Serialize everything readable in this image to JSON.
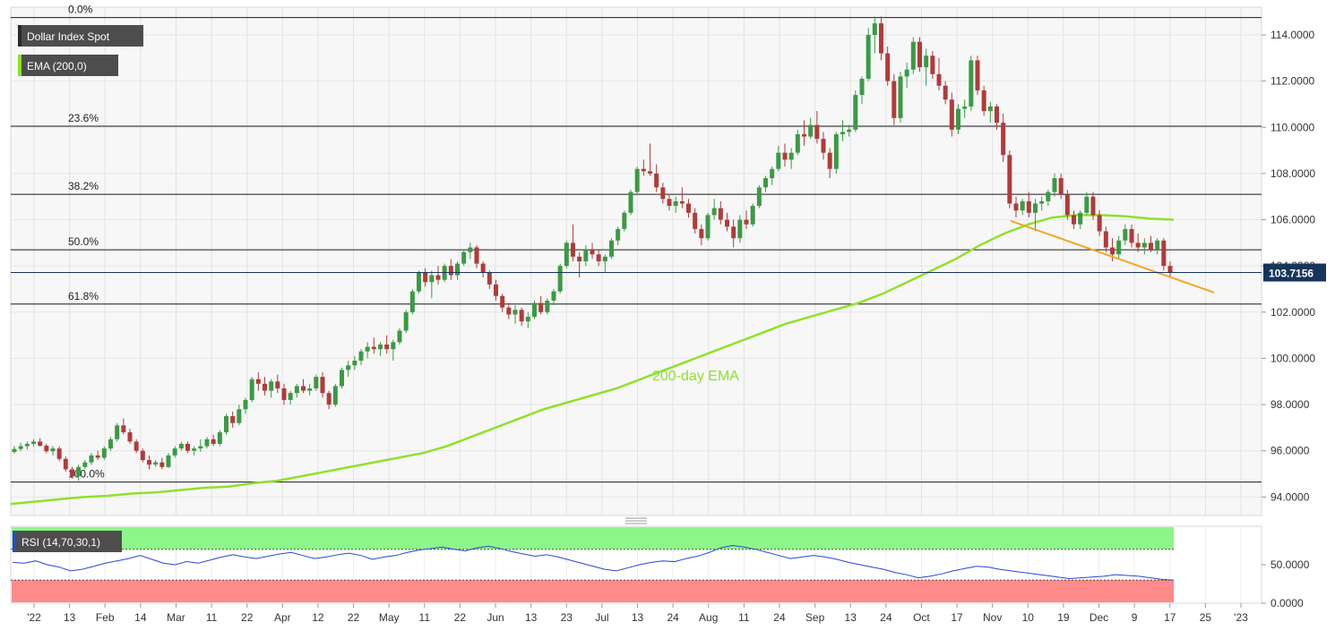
{
  "chart_data": {
    "type": "candlestick",
    "instrument": "Dollar Index Spot",
    "last_price": "103.7156",
    "price_axis": {
      "min": 93.2,
      "max": 115.2,
      "ticks": [
        94,
        96,
        98,
        100,
        102,
        104,
        106,
        108,
        110,
        112,
        114
      ],
      "tick_labels": [
        "94.0000",
        "96.0000",
        "98.0000",
        "100.0000",
        "102.0000",
        "104.0000",
        "106.0000",
        "108.0000",
        "110.0000",
        "112.0000",
        "114.0000"
      ]
    },
    "x_axis": {
      "labels": [
        "'22",
        "13",
        "Feb",
        "14",
        "Mar",
        "11",
        "22",
        "Apr",
        "12",
        "22",
        "May",
        "11",
        "22",
        "Jun",
        "13",
        "23",
        "Jul",
        "13",
        "24",
        "Aug",
        "11",
        "24",
        "Sep",
        "13",
        "24",
        "Oct",
        "17",
        "Nov",
        "10",
        "19",
        "Dec",
        "9",
        "17",
        "25",
        "'23"
      ]
    },
    "fibonacci": [
      {
        "label": "0.0%",
        "value": 114.75
      },
      {
        "label": "23.6%",
        "value": 110.05
      },
      {
        "label": "38.2%",
        "value": 107.1
      },
      {
        "label": "50.0%",
        "value": 104.7
      },
      {
        "label": "61.8%",
        "value": 102.35
      },
      {
        "label": "100.0%",
        "value": 94.65
      }
    ],
    "candles": [
      [
        95.95,
        96.2,
        95.88,
        96.08
      ],
      [
        96.08,
        96.35,
        95.98,
        96.2
      ],
      [
        96.2,
        96.4,
        96.05,
        96.3
      ],
      [
        96.3,
        96.5,
        96.2,
        96.4
      ],
      [
        96.4,
        96.55,
        96.18,
        96.22
      ],
      [
        96.22,
        96.3,
        95.9,
        95.98
      ],
      [
        95.98,
        96.2,
        95.8,
        96.1
      ],
      [
        96.1,
        96.2,
        95.55,
        95.65
      ],
      [
        95.65,
        95.75,
        95.1,
        95.2
      ],
      [
        95.2,
        95.3,
        94.8,
        94.9
      ],
      [
        94.9,
        95.4,
        94.7,
        95.3
      ],
      [
        95.3,
        95.6,
        95.2,
        95.5
      ],
      [
        95.5,
        95.9,
        95.4,
        95.8
      ],
      [
        95.8,
        96.0,
        95.6,
        95.7
      ],
      [
        95.7,
        96.2,
        95.6,
        96.1
      ],
      [
        96.1,
        96.6,
        96.0,
        96.5
      ],
      [
        96.5,
        97.2,
        96.4,
        97.1
      ],
      [
        97.1,
        97.4,
        96.7,
        96.8
      ],
      [
        96.8,
        96.95,
        96.3,
        96.4
      ],
      [
        96.4,
        96.5,
        95.9,
        96.0
      ],
      [
        96.0,
        96.1,
        95.5,
        95.6
      ],
      [
        95.6,
        95.8,
        95.2,
        95.4
      ],
      [
        95.4,
        95.6,
        95.3,
        95.5
      ],
      [
        95.5,
        95.7,
        95.2,
        95.3
      ],
      [
        95.3,
        95.9,
        95.25,
        95.8
      ],
      [
        95.8,
        96.2,
        95.7,
        96.1
      ],
      [
        96.1,
        96.4,
        96.0,
        96.3
      ],
      [
        96.3,
        96.4,
        95.9,
        96.0
      ],
      [
        96.0,
        96.2,
        95.8,
        96.1
      ],
      [
        96.1,
        96.5,
        95.95,
        96.2
      ],
      [
        96.2,
        96.6,
        96.1,
        96.5
      ],
      [
        96.5,
        96.7,
        96.2,
        96.3
      ],
      [
        96.3,
        96.9,
        96.2,
        96.8
      ],
      [
        96.8,
        97.6,
        96.7,
        97.5
      ],
      [
        97.5,
        97.7,
        97.0,
        97.2
      ],
      [
        97.2,
        98.0,
        97.1,
        97.8
      ],
      [
        97.8,
        98.3,
        97.6,
        98.2
      ],
      [
        98.2,
        99.2,
        98.1,
        99.1
      ],
      [
        99.1,
        99.4,
        98.6,
        98.9
      ],
      [
        98.9,
        99.2,
        98.4,
        98.6
      ],
      [
        98.6,
        99.1,
        98.3,
        99.0
      ],
      [
        99.0,
        99.3,
        98.5,
        98.7
      ],
      [
        98.7,
        98.9,
        98.0,
        98.2
      ],
      [
        98.2,
        98.6,
        98.0,
        98.5
      ],
      [
        98.5,
        98.9,
        98.3,
        98.8
      ],
      [
        98.8,
        99.1,
        98.5,
        98.6
      ],
      [
        98.6,
        98.9,
        98.4,
        98.7
      ],
      [
        98.7,
        99.3,
        98.6,
        99.2
      ],
      [
        99.2,
        99.4,
        98.3,
        98.5
      ],
      [
        98.5,
        98.6,
        97.8,
        98.0
      ],
      [
        98.0,
        98.9,
        97.9,
        98.8
      ],
      [
        98.8,
        99.6,
        98.7,
        99.5
      ],
      [
        99.5,
        99.9,
        99.2,
        99.7
      ],
      [
        99.7,
        100.1,
        99.5,
        99.9
      ],
      [
        99.9,
        100.4,
        99.7,
        100.3
      ],
      [
        100.3,
        100.7,
        100.0,
        100.5
      ],
      [
        100.5,
        100.9,
        100.2,
        100.4
      ],
      [
        100.4,
        100.7,
        100.1,
        100.6
      ],
      [
        100.6,
        101.0,
        100.2,
        100.4
      ],
      [
        100.4,
        100.8,
        99.9,
        100.7
      ],
      [
        100.7,
        101.3,
        100.6,
        101.2
      ],
      [
        101.2,
        102.1,
        101.1,
        102.0
      ],
      [
        102.0,
        103.0,
        101.9,
        102.9
      ],
      [
        102.9,
        103.8,
        102.8,
        103.7
      ],
      [
        103.7,
        103.9,
        103.1,
        103.3
      ],
      [
        103.3,
        103.8,
        102.6,
        103.6
      ],
      [
        103.6,
        104.0,
        103.2,
        103.4
      ],
      [
        103.4,
        104.1,
        103.3,
        104.0
      ],
      [
        104.0,
        104.3,
        103.4,
        103.6
      ],
      [
        103.6,
        104.2,
        103.4,
        104.1
      ],
      [
        104.1,
        104.7,
        104.0,
        104.6
      ],
      [
        104.6,
        105.0,
        104.3,
        104.8
      ],
      [
        104.8,
        104.9,
        103.9,
        104.1
      ],
      [
        104.1,
        104.2,
        103.5,
        103.7
      ],
      [
        103.7,
        103.8,
        103.0,
        103.2
      ],
      [
        103.2,
        103.4,
        102.5,
        102.7
      ],
      [
        102.7,
        102.8,
        102.0,
        102.2
      ],
      [
        102.2,
        102.4,
        101.7,
        101.9
      ],
      [
        101.9,
        102.3,
        101.5,
        102.1
      ],
      [
        102.1,
        102.2,
        101.4,
        101.6
      ],
      [
        101.6,
        102.0,
        101.3,
        101.8
      ],
      [
        101.8,
        102.5,
        101.7,
        102.4
      ],
      [
        102.4,
        102.7,
        101.9,
        102.0
      ],
      [
        102.0,
        102.6,
        101.9,
        102.5
      ],
      [
        102.5,
        103.0,
        102.3,
        102.9
      ],
      [
        102.9,
        104.1,
        102.8,
        104.0
      ],
      [
        104.0,
        105.1,
        103.9,
        105.0
      ],
      [
        105.0,
        105.8,
        104.2,
        104.4
      ],
      [
        104.4,
        104.6,
        103.5,
        104.2
      ],
      [
        104.2,
        104.9,
        104.0,
        104.7
      ],
      [
        104.7,
        105.0,
        104.3,
        104.5
      ],
      [
        104.5,
        104.7,
        104.0,
        104.2
      ],
      [
        104.2,
        104.5,
        103.7,
        104.4
      ],
      [
        104.4,
        105.2,
        104.3,
        105.1
      ],
      [
        105.1,
        105.7,
        104.9,
        105.6
      ],
      [
        105.6,
        106.4,
        105.5,
        106.3
      ],
      [
        106.3,
        107.3,
        106.2,
        107.2
      ],
      [
        107.2,
        108.3,
        107.1,
        108.2
      ],
      [
        108.2,
        108.6,
        107.9,
        108.1
      ],
      [
        108.1,
        109.3,
        107.9,
        108.0
      ],
      [
        108.0,
        108.4,
        107.2,
        107.4
      ],
      [
        107.4,
        107.6,
        106.7,
        106.9
      ],
      [
        106.9,
        107.1,
        106.4,
        106.6
      ],
      [
        106.6,
        107.0,
        106.3,
        106.8
      ],
      [
        106.8,
        107.4,
        106.5,
        106.7
      ],
      [
        106.7,
        106.9,
        106.1,
        106.3
      ],
      [
        106.3,
        106.5,
        105.4,
        105.6
      ],
      [
        105.6,
        105.8,
        104.9,
        105.2
      ],
      [
        105.2,
        106.3,
        105.1,
        106.2
      ],
      [
        106.2,
        106.9,
        106.0,
        106.5
      ],
      [
        106.5,
        106.8,
        105.8,
        106.0
      ],
      [
        106.0,
        106.3,
        105.5,
        105.7
      ],
      [
        105.7,
        106.0,
        104.8,
        105.2
      ],
      [
        105.2,
        106.2,
        105.0,
        106.0
      ],
      [
        106.0,
        106.4,
        105.6,
        105.8
      ],
      [
        105.8,
        106.7,
        105.7,
        106.6
      ],
      [
        106.6,
        107.5,
        106.5,
        107.4
      ],
      [
        107.4,
        107.9,
        107.2,
        107.8
      ],
      [
        107.8,
        108.3,
        107.5,
        108.2
      ],
      [
        108.2,
        109.2,
        108.1,
        108.9
      ],
      [
        108.9,
        109.3,
        108.3,
        108.6
      ],
      [
        108.6,
        109.1,
        108.2,
        108.9
      ],
      [
        108.9,
        109.9,
        108.8,
        109.7
      ],
      [
        109.7,
        110.3,
        109.2,
        109.6
      ],
      [
        109.6,
        110.4,
        109.5,
        110.1
      ],
      [
        110.1,
        110.7,
        109.3,
        109.5
      ],
      [
        109.5,
        109.8,
        108.6,
        108.9
      ],
      [
        108.9,
        109.1,
        107.8,
        108.2
      ],
      [
        108.2,
        109.8,
        108.0,
        109.7
      ],
      [
        109.7,
        110.3,
        109.4,
        109.8
      ],
      [
        109.8,
        110.1,
        109.6,
        109.9
      ],
      [
        109.9,
        111.6,
        109.8,
        111.4
      ],
      [
        111.4,
        112.2,
        111.0,
        112.1
      ],
      [
        112.1,
        114.3,
        112.0,
        114.0
      ],
      [
        114.0,
        114.8,
        113.2,
        114.5
      ],
      [
        114.5,
        114.8,
        112.9,
        113.2
      ],
      [
        113.2,
        113.5,
        111.8,
        112.0
      ],
      [
        112.0,
        112.3,
        110.1,
        110.4
      ],
      [
        110.4,
        112.4,
        110.2,
        112.2
      ],
      [
        112.2,
        112.8,
        111.7,
        112.5
      ],
      [
        112.5,
        113.9,
        112.3,
        113.7
      ],
      [
        113.7,
        113.9,
        112.4,
        112.6
      ],
      [
        112.6,
        113.4,
        111.8,
        113.1
      ],
      [
        113.1,
        113.3,
        112.1,
        112.3
      ],
      [
        112.3,
        113.0,
        111.6,
        111.8
      ],
      [
        111.8,
        112.0,
        111.0,
        111.2
      ],
      [
        111.2,
        111.5,
        109.6,
        109.9
      ],
      [
        109.9,
        111.0,
        109.7,
        110.8
      ],
      [
        110.8,
        111.2,
        110.4,
        110.9
      ],
      [
        110.9,
        113.1,
        110.7,
        112.9
      ],
      [
        112.9,
        113.1,
        111.4,
        111.6
      ],
      [
        111.6,
        111.8,
        110.5,
        110.7
      ],
      [
        110.7,
        111.1,
        110.2,
        110.9
      ],
      [
        110.9,
        111.0,
        109.9,
        110.2
      ],
      [
        110.2,
        110.6,
        108.5,
        108.8
      ],
      [
        108.8,
        109.0,
        106.5,
        106.7
      ],
      [
        106.7,
        107.0,
        106.1,
        106.4
      ],
      [
        106.4,
        106.9,
        106.2,
        106.8
      ],
      [
        106.8,
        107.2,
        106.1,
        106.3
      ],
      [
        106.3,
        106.9,
        105.5,
        106.7
      ],
      [
        106.7,
        107.0,
        106.4,
        106.8
      ],
      [
        106.8,
        107.3,
        106.6,
        107.2
      ],
      [
        107.2,
        108.0,
        107.0,
        107.8
      ],
      [
        107.8,
        108.0,
        106.9,
        107.1
      ],
      [
        107.1,
        107.3,
        106.0,
        106.2
      ],
      [
        106.2,
        106.4,
        105.6,
        105.8
      ],
      [
        105.8,
        106.4,
        105.6,
        106.3
      ],
      [
        106.3,
        107.2,
        106.2,
        107.0
      ],
      [
        107.0,
        107.2,
        106.0,
        106.2
      ],
      [
        106.2,
        106.4,
        105.3,
        105.5
      ],
      [
        105.5,
        105.7,
        104.6,
        104.8
      ],
      [
        104.8,
        105.2,
        104.2,
        104.5
      ],
      [
        104.5,
        105.3,
        104.3,
        105.1
      ],
      [
        105.1,
        105.8,
        104.9,
        105.6
      ],
      [
        105.6,
        105.8,
        104.8,
        105.0
      ],
      [
        105.0,
        105.4,
        104.6,
        104.8
      ],
      [
        104.8,
        105.2,
        104.5,
        105.0
      ],
      [
        105.0,
        105.3,
        104.6,
        104.7
      ],
      [
        104.7,
        105.2,
        104.5,
        105.1
      ],
      [
        105.1,
        105.2,
        103.8,
        104.0
      ],
      [
        104.0,
        104.2,
        103.5,
        103.72
      ]
    ],
    "ema_200": {
      "label": "200-day EMA",
      "values": [
        93.7,
        93.8,
        93.9,
        94.0,
        94.05,
        94.15,
        94.2,
        94.3,
        94.4,
        94.45,
        94.6,
        94.7,
        94.9,
        95.1,
        95.3,
        95.5,
        95.7,
        95.9,
        96.2,
        96.6,
        97.0,
        97.4,
        97.8,
        98.1,
        98.4,
        98.7,
        99.1,
        99.5,
        99.9,
        100.3,
        100.7,
        101.1,
        101.5,
        101.8,
        102.1,
        102.4,
        102.8,
        103.3,
        103.8,
        104.3,
        104.9,
        105.4,
        105.8,
        106.1,
        106.2,
        106.2,
        106.15,
        106.05,
        106.0
      ]
    },
    "trendline_support": [
      [
        104,
        1147
      ],
      [
        103,
        1170
      ]
    ],
    "rsi": {
      "label": "RSI (14,70,30,1)",
      "overbought": 70,
      "oversold": 30,
      "ticks": [
        0,
        50
      ],
      "tick_labels": [
        "0.0000",
        "50.0000"
      ],
      "values": [
        53,
        52,
        55,
        50,
        47,
        42,
        44,
        48,
        52,
        55,
        58,
        62,
        57,
        52,
        50,
        54,
        52,
        56,
        60,
        63,
        60,
        58,
        61,
        64,
        66,
        62,
        58,
        60,
        63,
        65,
        62,
        57,
        60,
        62,
        66,
        69,
        71,
        73,
        70,
        68,
        72,
        74,
        71,
        67,
        64,
        61,
        63,
        60,
        56,
        52,
        48,
        44,
        42,
        46,
        50,
        53,
        55,
        54,
        58,
        61,
        66,
        72,
        75,
        73,
        70,
        66,
        62,
        58,
        60,
        62,
        60,
        57,
        53,
        50,
        47,
        44,
        40,
        37,
        33,
        35,
        38,
        42,
        45,
        48,
        47,
        44,
        42,
        40,
        38,
        36,
        34,
        32,
        33,
        34,
        35,
        37,
        36,
        35,
        33,
        31,
        30
      ]
    },
    "annotations": {
      "ema_label": "200-day EMA"
    }
  },
  "legend": {
    "main_title": "Dollar Index Spot",
    "ema_item": "EMA (200,0)",
    "rsi_item": "RSI (14,70,30,1)"
  },
  "colors": {
    "up": "#3a9a46",
    "down": "#b23a3a",
    "ema": "#8fe12a",
    "trendline": "#f5a623",
    "rsi_line": "#2a46d8",
    "overbought_zone": "#8ef58a",
    "oversold_zone": "#ff8a8a",
    "plot_bg": "#f7f7f7",
    "price_tag_bg": "#16345c"
  }
}
